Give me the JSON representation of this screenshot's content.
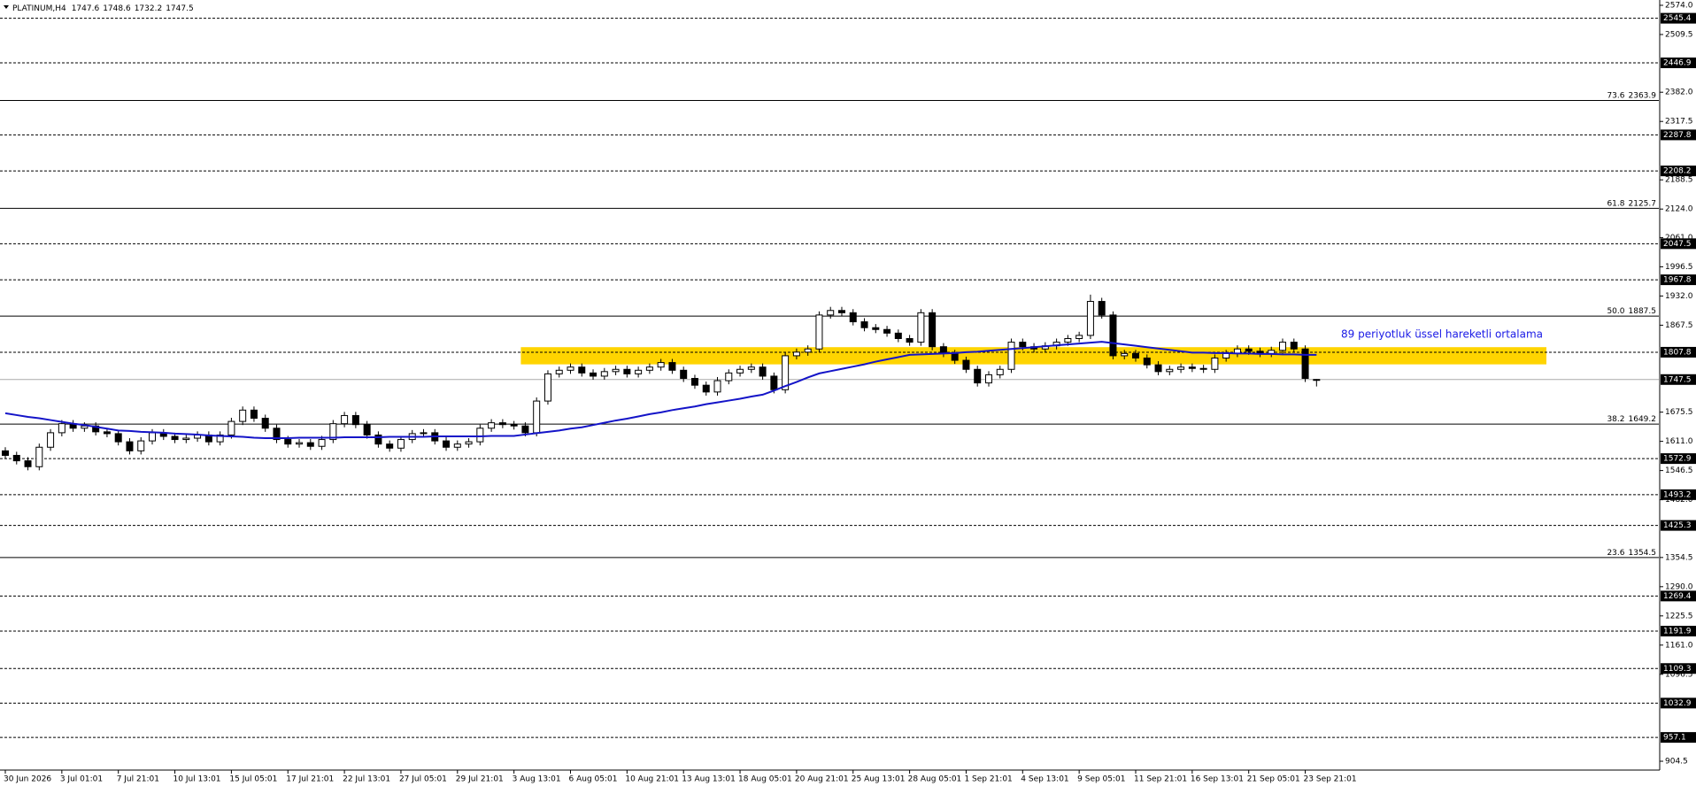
{
  "chart_data": {
    "type": "candlestick",
    "symbol": "PLATINUM,H4",
    "categories": [
      "30 Jun 2026",
      null,
      null,
      null,
      null,
      "3 Jul 01:01",
      null,
      null,
      null,
      null,
      "7 Jul 21:01",
      null,
      null,
      null,
      null,
      "10 Jul 13:01",
      null,
      null,
      null,
      null,
      "15 Jul 05:01",
      null,
      null,
      null,
      null,
      "17 Jul 21:01",
      null,
      null,
      null,
      null,
      "22 Jul 13:01",
      null,
      null,
      null,
      null,
      "27 Jul 05:01",
      null,
      null,
      null,
      null,
      "29 Jul 21:01",
      null,
      null,
      null,
      null,
      "3 Aug 13:01",
      null,
      null,
      null,
      null,
      "6 Aug 05:01",
      null,
      null,
      null,
      null,
      "10 Aug 21:01",
      null,
      null,
      null,
      null,
      "13 Aug 13:01",
      null,
      null,
      null,
      null,
      "18 Aug 05:01",
      null,
      null,
      null,
      null,
      "20 Aug 21:01",
      null,
      null,
      null,
      null,
      "25 Aug 13:01",
      null,
      null,
      null,
      null,
      "28 Aug 05:01",
      null,
      null,
      null,
      null,
      "1 Sep 21:01",
      null,
      null,
      null,
      null,
      "4 Sep 13:01",
      null,
      null,
      null,
      null,
      "9 Sep 05:01",
      null,
      null,
      null,
      null,
      "11 Sep 21:01",
      null,
      null,
      null,
      null,
      "16 Sep 13:01",
      null,
      null,
      null,
      null,
      "21 Sep 05:01",
      null,
      null,
      null,
      null,
      "23 Sep 21:01",
      null
    ],
    "ohlc": [
      [
        1590,
        1598,
        1572,
        1580
      ],
      [
        1580,
        1588,
        1560,
        1568
      ],
      [
        1568,
        1576,
        1547,
        1555
      ],
      [
        1555,
        1606,
        1547,
        1598
      ],
      [
        1598,
        1638,
        1590,
        1630
      ],
      [
        1630,
        1658,
        1622,
        1650
      ],
      [
        1650,
        1658,
        1632,
        1640
      ],
      [
        1640,
        1653,
        1632,
        1645
      ],
      [
        1645,
        1653,
        1624,
        1632
      ],
      [
        1632,
        1640,
        1620,
        1628
      ],
      [
        1628,
        1636,
        1602,
        1610
      ],
      [
        1610,
        1618,
        1582,
        1590
      ],
      [
        1590,
        1620,
        1582,
        1612
      ],
      [
        1612,
        1638,
        1604,
        1630
      ],
      [
        1630,
        1638,
        1614,
        1622
      ],
      [
        1622,
        1630,
        1607,
        1615
      ],
      [
        1615,
        1626,
        1607,
        1618
      ],
      [
        1618,
        1633,
        1610,
        1625
      ],
      [
        1625,
        1633,
        1602,
        1610
      ],
      [
        1610,
        1633,
        1602,
        1625
      ],
      [
        1625,
        1663,
        1617,
        1655
      ],
      [
        1655,
        1688,
        1647,
        1680
      ],
      [
        1680,
        1688,
        1654,
        1662
      ],
      [
        1662,
        1670,
        1632,
        1640
      ],
      [
        1640,
        1648,
        1607,
        1615
      ],
      [
        1615,
        1623,
        1597,
        1605
      ],
      [
        1605,
        1616,
        1597,
        1608
      ],
      [
        1608,
        1616,
        1592,
        1600
      ],
      [
        1600,
        1623,
        1592,
        1615
      ],
      [
        1615,
        1658,
        1607,
        1650
      ],
      [
        1650,
        1676,
        1642,
        1668
      ],
      [
        1668,
        1676,
        1640,
        1648
      ],
      [
        1648,
        1656,
        1617,
        1625
      ],
      [
        1625,
        1633,
        1597,
        1605
      ],
      [
        1605,
        1613,
        1588,
        1596
      ],
      [
        1596,
        1623,
        1588,
        1615
      ],
      [
        1615,
        1636,
        1607,
        1628
      ],
      [
        1628,
        1638,
        1620,
        1630
      ],
      [
        1630,
        1638,
        1604,
        1612
      ],
      [
        1612,
        1620,
        1590,
        1598
      ],
      [
        1598,
        1613,
        1590,
        1605
      ],
      [
        1605,
        1618,
        1597,
        1610
      ],
      [
        1610,
        1648,
        1602,
        1640
      ],
      [
        1640,
        1660,
        1632,
        1652
      ],
      [
        1652,
        1660,
        1640,
        1648
      ],
      [
        1648,
        1656,
        1637,
        1645
      ],
      [
        1645,
        1653,
        1622,
        1630
      ],
      [
        1630,
        1708,
        1622,
        1700
      ],
      [
        1700,
        1768,
        1692,
        1760
      ],
      [
        1760,
        1776,
        1752,
        1768
      ],
      [
        1768,
        1783,
        1760,
        1775
      ],
      [
        1775,
        1783,
        1754,
        1762
      ],
      [
        1762,
        1770,
        1747,
        1755
      ],
      [
        1755,
        1773,
        1747,
        1765
      ],
      [
        1765,
        1778,
        1757,
        1770
      ],
      [
        1770,
        1778,
        1752,
        1760
      ],
      [
        1760,
        1776,
        1752,
        1768
      ],
      [
        1768,
        1783,
        1760,
        1775
      ],
      [
        1775,
        1793,
        1767,
        1785
      ],
      [
        1785,
        1793,
        1760,
        1768
      ],
      [
        1768,
        1776,
        1742,
        1750
      ],
      [
        1750,
        1758,
        1727,
        1735
      ],
      [
        1735,
        1743,
        1712,
        1720
      ],
      [
        1720,
        1753,
        1712,
        1745
      ],
      [
        1745,
        1770,
        1737,
        1762
      ],
      [
        1762,
        1778,
        1754,
        1770
      ],
      [
        1770,
        1783,
        1762,
        1775
      ],
      [
        1775,
        1783,
        1747,
        1755
      ],
      [
        1755,
        1763,
        1717,
        1725
      ],
      [
        1725,
        1808,
        1717,
        1800
      ],
      [
        1800,
        1816,
        1792,
        1808
      ],
      [
        1808,
        1823,
        1800,
        1815
      ],
      [
        1815,
        1898,
        1807,
        1890
      ],
      [
        1890,
        1908,
        1882,
        1900
      ],
      [
        1900,
        1908,
        1887,
        1895
      ],
      [
        1895,
        1903,
        1867,
        1875
      ],
      [
        1875,
        1883,
        1854,
        1862
      ],
      [
        1862,
        1870,
        1850,
        1858
      ],
      [
        1858,
        1866,
        1842,
        1850
      ],
      [
        1850,
        1858,
        1830,
        1838
      ],
      [
        1838,
        1846,
        1822,
        1830
      ],
      [
        1830,
        1903,
        1822,
        1895
      ],
      [
        1895,
        1903,
        1812,
        1820
      ],
      [
        1820,
        1828,
        1797,
        1805
      ],
      [
        1805,
        1813,
        1782,
        1790
      ],
      [
        1790,
        1798,
        1762,
        1770
      ],
      [
        1770,
        1778,
        1732,
        1740
      ],
      [
        1740,
        1766,
        1732,
        1758
      ],
      [
        1758,
        1778,
        1750,
        1770
      ],
      [
        1770,
        1838,
        1762,
        1830
      ],
      [
        1830,
        1838,
        1812,
        1820
      ],
      [
        1820,
        1828,
        1807,
        1815
      ],
      [
        1815,
        1830,
        1807,
        1822
      ],
      [
        1822,
        1838,
        1814,
        1830
      ],
      [
        1830,
        1846,
        1822,
        1838
      ],
      [
        1838,
        1853,
        1830,
        1845
      ],
      [
        1845,
        1935,
        1837,
        1920
      ],
      [
        1920,
        1928,
        1882,
        1890
      ],
      [
        1890,
        1898,
        1792,
        1800
      ],
      [
        1800,
        1813,
        1792,
        1805
      ],
      [
        1805,
        1813,
        1787,
        1795
      ],
      [
        1795,
        1803,
        1772,
        1780
      ],
      [
        1780,
        1788,
        1757,
        1765
      ],
      [
        1765,
        1778,
        1757,
        1770
      ],
      [
        1770,
        1783,
        1762,
        1775
      ],
      [
        1775,
        1783,
        1764,
        1772
      ],
      [
        1772,
        1780,
        1762,
        1770
      ],
      [
        1770,
        1803,
        1762,
        1795
      ],
      [
        1795,
        1813,
        1787,
        1805
      ],
      [
        1805,
        1823,
        1797,
        1815
      ],
      [
        1815,
        1823,
        1802,
        1810
      ],
      [
        1810,
        1818,
        1797,
        1805
      ],
      [
        1805,
        1820,
        1797,
        1812
      ],
      [
        1812,
        1838,
        1804,
        1830
      ],
      [
        1830,
        1838,
        1807,
        1815
      ],
      [
        1815,
        1823,
        1742,
        1750
      ],
      [
        1747.6,
        1748.6,
        1732.2,
        1747.5
      ]
    ],
    "ma": {
      "color": "#1414c8",
      "values": [
        1673,
        1669,
        1665,
        1662,
        1658,
        1654,
        1650,
        1647,
        1643,
        1639,
        1635,
        1634,
        1632,
        1631,
        1630,
        1628,
        1627,
        1626,
        1624,
        1623,
        1622,
        1621,
        1619,
        1618,
        1618,
        1618,
        1619,
        1619,
        1619,
        1619,
        1620,
        1620,
        1620,
        1620,
        1621,
        1621,
        1621,
        1621,
        1622,
        1622,
        1622,
        1622,
        1622,
        1623,
        1623,
        1623,
        1626,
        1629,
        1632,
        1635,
        1639,
        1642,
        1647,
        1652,
        1657,
        1661,
        1666,
        1671,
        1675,
        1680,
        1684,
        1688,
        1693,
        1697,
        1701,
        1705,
        1710,
        1714,
        1723,
        1733,
        1742,
        1752,
        1761,
        1766,
        1771,
        1776,
        1781,
        1787,
        1792,
        1797,
        1802,
        1803,
        1804,
        1805,
        1806,
        1808,
        1809,
        1811,
        1813,
        1815,
        1817,
        1819,
        1821,
        1823,
        1825,
        1827,
        1829,
        1831,
        1828,
        1825,
        1822,
        1819,
        1816,
        1813,
        1810,
        1807,
        1807,
        1806,
        1806,
        1805,
        1805,
        1804,
        1804,
        1803,
        1803,
        1802,
        1802
      ]
    },
    "annotation": "89 periyotluk üssel hareketli ortalama",
    "annotation_color": "#1a1ae6",
    "zone": {
      "top": 1819,
      "bottom": 1781,
      "color": "#ffd400"
    },
    "levels": [
      2545.4,
      2446.9,
      2287.8,
      2208.2,
      2047.5,
      1967.8,
      1807.8,
      1572.9,
      1493.2,
      1425.3,
      1269.4,
      1191.9,
      1109.3,
      1032.9,
      957.1
    ],
    "fib": [
      {
        "ratio": "73.6",
        "price": 2363.9
      },
      {
        "ratio": "61.8",
        "price": 2125.7
      },
      {
        "ratio": "50.0",
        "price": 1887.5
      },
      {
        "ratio": "38.2",
        "price": 1649.2
      },
      {
        "ratio": "23.6",
        "price": 1354.5
      }
    ],
    "ylim": [
      885,
      2585.7
    ],
    "yticks": [
      {
        "value": 2574,
        "label": "2574.0"
      },
      2509.5,
      {
        "value": 2382,
        "label": "2382.0"
      },
      2317.5,
      2188.5,
      {
        "value": 2124,
        "label": "2124.0"
      },
      {
        "value": 2061,
        "label": "2061.0"
      },
      1996.5,
      {
        "value": 1932,
        "label": "1932.0"
      },
      1867.5,
      1675.5,
      {
        "value": 1611,
        "label": "1611.0"
      },
      1546.5,
      {
        "value": 1482,
        "label": "1482.0"
      },
      1354.5,
      {
        "value": 1290,
        "label": "1290.0"
      },
      1225.5,
      {
        "value": 1161,
        "label": "1161.0"
      },
      1096.5,
      904.5
    ],
    "grid": false
  }
}
